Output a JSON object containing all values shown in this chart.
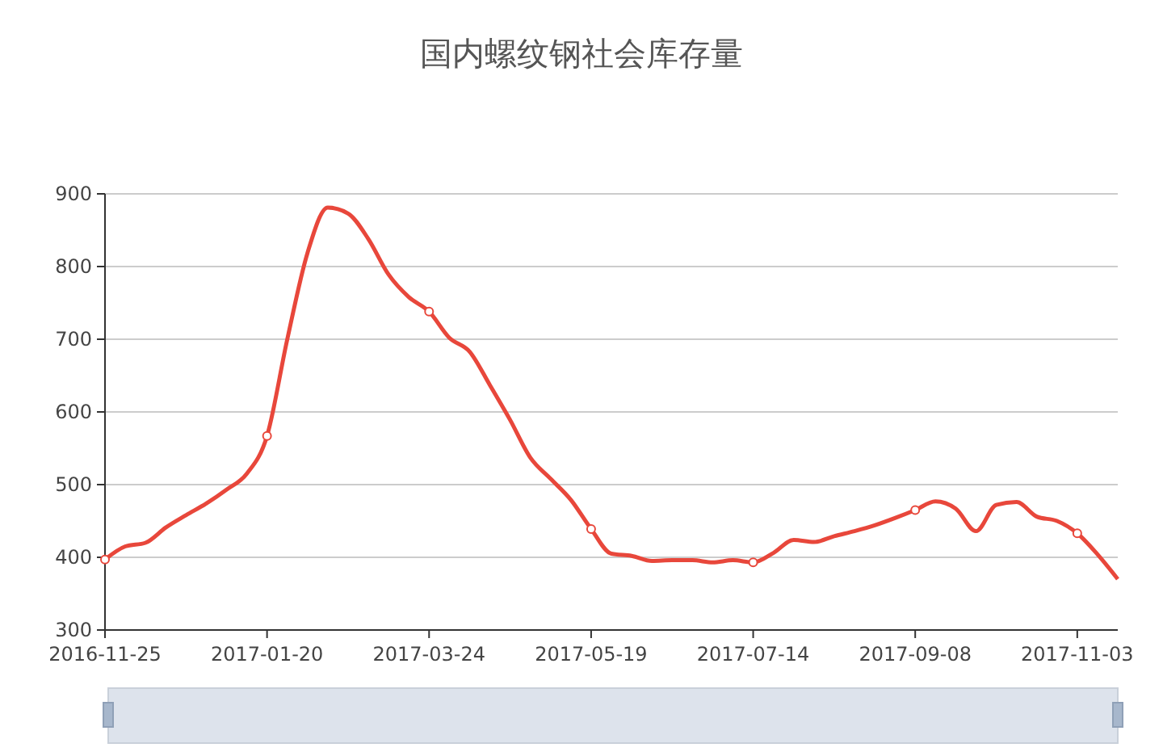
{
  "chart_data": {
    "type": "line",
    "title": "国内螺纹钢社会库存量",
    "categories": [
      "2016-11-25",
      null,
      null,
      null,
      null,
      null,
      null,
      null,
      "2017-01-20",
      null,
      null,
      null,
      null,
      null,
      null,
      null,
      "2017-03-24",
      null,
      null,
      null,
      null,
      null,
      null,
      null,
      "2017-05-19",
      null,
      null,
      null,
      null,
      null,
      null,
      null,
      "2017-07-14",
      null,
      null,
      null,
      null,
      null,
      null,
      null,
      "2017-09-08",
      null,
      null,
      null,
      null,
      null,
      null,
      null,
      "2017-11-03",
      null,
      null
    ],
    "series": [
      {
        "color": "#e8473b",
        "marker": "none",
        "values": [
          397,
          415,
          420,
          441,
          458,
          474,
          493,
          515,
          567,
          700,
          819,
          881,
          873,
          838,
          789,
          758,
          738,
          702,
          683,
          637,
          589,
          537,
          508,
          479,
          439,
          405,
          402,
          395,
          396,
          396,
          393,
          396,
          393,
          406,
          424,
          421,
          429,
          436,
          444,
          454,
          465,
          477,
          467,
          436,
          472,
          476,
          456,
          450,
          433,
          404,
          370
        ]
      },
      {
        "type": "scatter",
        "color": "#e8473b",
        "marker": "circle",
        "values": [
          397,
          null,
          null,
          null,
          null,
          null,
          null,
          null,
          567,
          null,
          null,
          null,
          null,
          null,
          null,
          null,
          738,
          null,
          null,
          null,
          null,
          null,
          null,
          null,
          439,
          null,
          null,
          null,
          null,
          null,
          null,
          null,
          393,
          null,
          null,
          null,
          null,
          null,
          null,
          null,
          465,
          null,
          null,
          null,
          null,
          null,
          null,
          null,
          433,
          null,
          null
        ]
      }
    ],
    "ylim": [
      300,
      900
    ],
    "yticks": [
      300,
      400,
      500,
      600,
      700,
      800,
      900
    ],
    "grid": "y",
    "line_style": "solid"
  }
}
